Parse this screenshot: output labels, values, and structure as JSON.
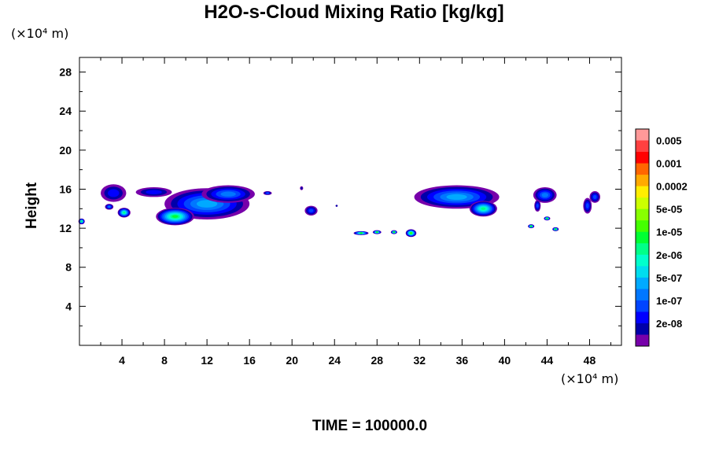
{
  "chart_data": {
    "type": "heatmap",
    "title": "H2O-s-Cloud Mixing Ratio [kg/kg]",
    "y_units_label": "(×10⁴ m)",
    "x_units_label": "(×10⁴ m)",
    "ylabel": "Height",
    "footer": "TIME = 100000.0",
    "xlim": [
      0,
      51
    ],
    "ylim": [
      0,
      29.5
    ],
    "x_ticks": [
      "4",
      "8",
      "12",
      "16",
      "20",
      "24",
      "28",
      "32",
      "36",
      "40",
      "44",
      "48"
    ],
    "y_ticks": [
      "4",
      "8",
      "12",
      "16",
      "20",
      "24",
      "28"
    ],
    "colorbar": {
      "labels": [
        "0.005",
        "0.001",
        "0.0002",
        "5e-05",
        "1e-05",
        "2e-06",
        "5e-07",
        "1e-07",
        "2e-08"
      ],
      "colors_top_to_bottom": [
        "#ff9999",
        "#ff4040",
        "#ff0000",
        "#ff6600",
        "#ffaa00",
        "#ffee00",
        "#ccff00",
        "#88ff00",
        "#44ff00",
        "#00ff33",
        "#00ff88",
        "#00ffcc",
        "#00ddee",
        "#00aaff",
        "#0077ff",
        "#0044ff",
        "#0000ff",
        "#0000aa",
        "#7700aa"
      ]
    },
    "clouds": [
      {
        "x": 3.2,
        "y": 15.6,
        "rx": 1.2,
        "ry": 0.9,
        "level": 2
      },
      {
        "x": 7.0,
        "y": 15.7,
        "rx": 1.7,
        "ry": 0.5,
        "level": 2
      },
      {
        "x": 12.0,
        "y": 14.5,
        "rx": 4.0,
        "ry": 1.6,
        "level": 5
      },
      {
        "x": 9.0,
        "y": 13.2,
        "rx": 1.8,
        "ry": 0.9,
        "level": 9
      },
      {
        "x": 14.0,
        "y": 15.5,
        "rx": 2.5,
        "ry": 0.9,
        "level": 4
      },
      {
        "x": 4.2,
        "y": 13.6,
        "rx": 0.6,
        "ry": 0.5,
        "level": 8
      },
      {
        "x": 0.2,
        "y": 12.7,
        "rx": 0.3,
        "ry": 0.3,
        "level": 8
      },
      {
        "x": 2.8,
        "y": 14.2,
        "rx": 0.4,
        "ry": 0.3,
        "level": 4
      },
      {
        "x": 17.7,
        "y": 15.6,
        "rx": 0.4,
        "ry": 0.2,
        "level": 3
      },
      {
        "x": 20.9,
        "y": 16.1,
        "rx": 0.15,
        "ry": 0.2,
        "level": 1
      },
      {
        "x": 21.8,
        "y": 13.8,
        "rx": 0.6,
        "ry": 0.5,
        "level": 3
      },
      {
        "x": 24.2,
        "y": 14.3,
        "rx": 0.1,
        "ry": 0.1,
        "level": 1
      },
      {
        "x": 26.5,
        "y": 11.5,
        "rx": 0.7,
        "ry": 0.2,
        "level": 9
      },
      {
        "x": 28.0,
        "y": 11.6,
        "rx": 0.4,
        "ry": 0.2,
        "level": 9
      },
      {
        "x": 29.6,
        "y": 11.6,
        "rx": 0.3,
        "ry": 0.2,
        "level": 9
      },
      {
        "x": 31.2,
        "y": 11.5,
        "rx": 0.5,
        "ry": 0.4,
        "level": 10
      },
      {
        "x": 35.5,
        "y": 15.2,
        "rx": 4.0,
        "ry": 1.2,
        "level": 5
      },
      {
        "x": 38.0,
        "y": 14.0,
        "rx": 1.3,
        "ry": 0.8,
        "level": 8
      },
      {
        "x": 43.8,
        "y": 15.4,
        "rx": 1.1,
        "ry": 0.8,
        "level": 4
      },
      {
        "x": 43.1,
        "y": 14.3,
        "rx": 0.3,
        "ry": 0.6,
        "level": 3
      },
      {
        "x": 42.5,
        "y": 12.2,
        "rx": 0.3,
        "ry": 0.2,
        "level": 9
      },
      {
        "x": 44.0,
        "y": 13.0,
        "rx": 0.3,
        "ry": 0.2,
        "level": 9
      },
      {
        "x": 44.8,
        "y": 11.9,
        "rx": 0.3,
        "ry": 0.2,
        "level": 9
      },
      {
        "x": 48.5,
        "y": 15.2,
        "rx": 0.5,
        "ry": 0.6,
        "level": 3
      },
      {
        "x": 47.8,
        "y": 14.3,
        "rx": 0.4,
        "ry": 0.8,
        "level": 3
      }
    ]
  }
}
